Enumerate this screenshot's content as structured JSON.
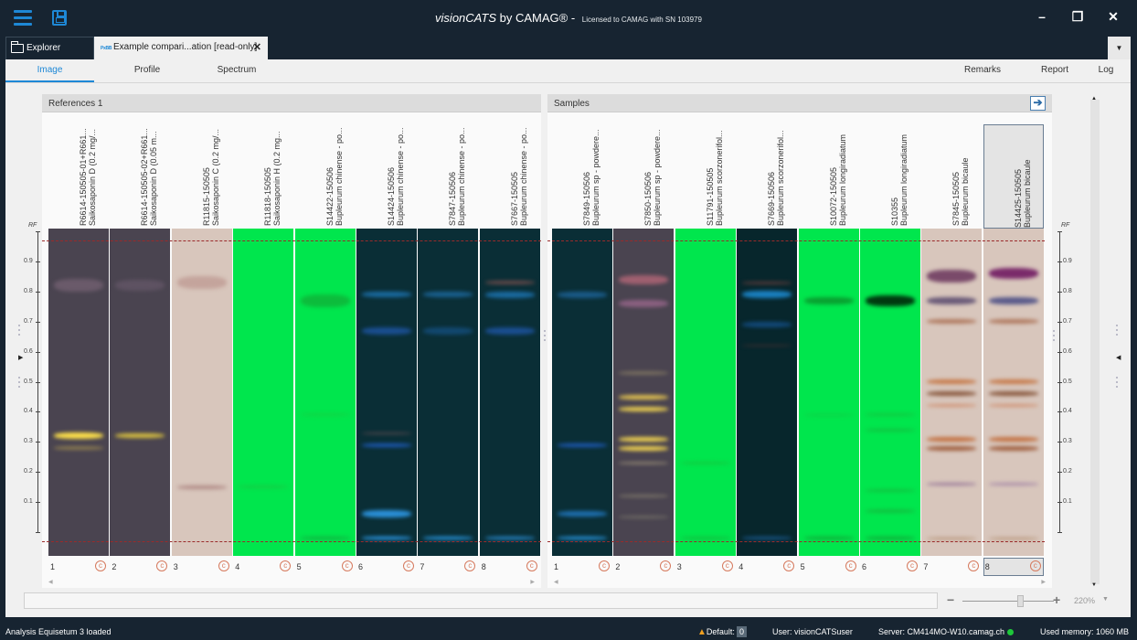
{
  "titlebar": {
    "app_name_italic": "visionCATS",
    "app_name_rest": " by CAMAG®",
    "separator": " - ",
    "license": "Licensed to CAMAG with SN 103979",
    "minimize": "–",
    "restore": "❐",
    "close": "✕"
  },
  "tabs": {
    "explorer": "Explorer",
    "doc_icon_text": "PxBB",
    "document": "Example compari...ation [read-only]",
    "close": "✕",
    "dropdown": "▼"
  },
  "subtabs": {
    "left": [
      {
        "label": "Image",
        "active": true
      },
      {
        "label": "Profile",
        "active": false
      },
      {
        "label": "Spectrum",
        "active": false
      }
    ],
    "right": [
      {
        "label": "Remarks"
      },
      {
        "label": "Report"
      },
      {
        "label": "Log"
      }
    ]
  },
  "references_panel": {
    "title": "References 1",
    "lanes": [
      {
        "num": "1",
        "line1": "R6614-150505-01+R661...",
        "line2": "Saikosaponin D (0.2 mg/...",
        "bg": "#4a4450",
        "bands": [
          {
            "rf": 0.35,
            "color": "#ffe14a",
            "h": 7
          },
          {
            "rf": 0.31,
            "color": "#8a7a50",
            "h": 4
          },
          {
            "rf": 0.85,
            "color": "#6a5a6a",
            "h": 14
          }
        ]
      },
      {
        "num": "2",
        "line1": "R6614-150505-02+R661...",
        "line2": "Saikosaponin D (0.05 m...",
        "bg": "#4a4450",
        "bands": [
          {
            "rf": 0.35,
            "color": "#d8c040",
            "h": 5
          },
          {
            "rf": 0.85,
            "color": "#5e5262",
            "h": 12
          }
        ]
      },
      {
        "num": "3",
        "line1": "R11815-150505",
        "line2": "Saikosaponin C (0.2 mg/...",
        "bg": "#d8c6bc",
        "bands": [
          {
            "rf": 0.18,
            "color": "#b08a86",
            "h": 4
          },
          {
            "rf": 0.86,
            "color": "#c4a49c",
            "h": 14
          }
        ]
      },
      {
        "num": "4",
        "line1": "R11818-150505",
        "line2": "Saikosaponin H (0.2 mg...",
        "bg": "#00e64d",
        "bands": [
          {
            "rf": 0.18,
            "color": "#14cc44",
            "h": 3
          }
        ]
      },
      {
        "num": "5",
        "line1": "S14422-150506",
        "line2": "Bupleurum chinense - po...",
        "bg": "#00e64d",
        "bands": [
          {
            "rf": 0.8,
            "color": "#0cbc3c",
            "h": 14
          },
          {
            "rf": 0.42,
            "color": "#10d444",
            "h": 3
          },
          {
            "rf": 0.01,
            "color": "#10b040",
            "h": 3
          }
        ]
      },
      {
        "num": "6",
        "line1": "S14424-150506",
        "line2": "Bupleurum chinense - po...",
        "bg": "#0a2e36",
        "bands": [
          {
            "rf": 0.82,
            "color": "#1a6aa0",
            "h": 6
          },
          {
            "rf": 0.7,
            "color": "#1a4e90",
            "h": 8
          },
          {
            "rf": 0.32,
            "color": "#1e5ab8",
            "h": 4
          },
          {
            "rf": 0.36,
            "color": "#5a4a50",
            "h": 2
          },
          {
            "rf": 0.09,
            "color": "#2a90d8",
            "h": 8
          },
          {
            "rf": 0.01,
            "color": "#30a8ff",
            "h": 3
          }
        ]
      },
      {
        "num": "7",
        "line1": "S7847-150506",
        "line2": "Bupleurum chinense - po...",
        "bg": "#0a2e36",
        "bands": [
          {
            "rf": 0.82,
            "color": "#1a6090",
            "h": 6
          },
          {
            "rf": 0.7,
            "color": "#124870",
            "h": 8
          },
          {
            "rf": 0.01,
            "color": "#2aa0f0",
            "h": 3
          }
        ]
      },
      {
        "num": "8",
        "line1": "S7667-150505",
        "line2": "Bupleurum chinense - po...",
        "bg": "#0a2e36",
        "bands": [
          {
            "rf": 0.86,
            "color": "#6a4a4a",
            "h": 4
          },
          {
            "rf": 0.82,
            "color": "#1a6aa0",
            "h": 7
          },
          {
            "rf": 0.7,
            "color": "#1a4e90",
            "h": 8
          },
          {
            "rf": 0.01,
            "color": "#2a90d8",
            "h": 3
          }
        ]
      }
    ]
  },
  "samples_panel": {
    "title": "Samples",
    "go_button": "➔",
    "lanes": [
      {
        "num": "1",
        "line1": "S7849-150506",
        "line2": "Bupleurum sp - powdere...",
        "bg": "#0a2e36",
        "bands": [
          {
            "rf": 0.82,
            "color": "#1a5a88",
            "h": 7
          },
          {
            "rf": 0.32,
            "color": "#1e5ab8",
            "h": 4
          },
          {
            "rf": 0.09,
            "color": "#1e70b0",
            "h": 6
          },
          {
            "rf": 0.01,
            "color": "#2aa0f0",
            "h": 3
          }
        ]
      },
      {
        "num": "2",
        "line1": "S7850-150506",
        "line2": "Bupleurum sp - powdere...",
        "bg": "#4a4450",
        "bands": [
          {
            "rf": 0.87,
            "color": "#a06070",
            "h": 10
          },
          {
            "rf": 0.79,
            "color": "#8a6080",
            "h": 8
          },
          {
            "rf": 0.56,
            "color": "#7a7060",
            "h": 4
          },
          {
            "rf": 0.48,
            "color": "#e0c050",
            "h": 5
          },
          {
            "rf": 0.44,
            "color": "#e8cc50",
            "h": 5
          },
          {
            "rf": 0.34,
            "color": "#f0d250",
            "h": 5
          },
          {
            "rf": 0.31,
            "color": "#f0d250",
            "h": 5
          },
          {
            "rf": 0.26,
            "color": "#8a8070",
            "h": 3
          },
          {
            "rf": 0.15,
            "color": "#7a7468",
            "h": 3
          },
          {
            "rf": 0.08,
            "color": "#6e6a64",
            "h": 3
          }
        ]
      },
      {
        "num": "3",
        "line1": "S11791-150505",
        "line2": "Bupleurum scorzonerifol...",
        "bg": "#00e64d",
        "bands": [
          {
            "rf": 0.26,
            "color": "#10cc40",
            "h": 3
          },
          {
            "rf": 0.01,
            "color": "#10c040",
            "h": 3
          }
        ]
      },
      {
        "num": "4",
        "line1": "S7669-150506",
        "line2": "Bupleurum scorzonerifol...",
        "bg": "#07262c",
        "bands": [
          {
            "rf": 0.86,
            "color": "#5a3a3a",
            "h": 3
          },
          {
            "rf": 0.82,
            "color": "#1a80c0",
            "h": 8
          },
          {
            "rf": 0.72,
            "color": "#124878",
            "h": 6
          },
          {
            "rf": 0.65,
            "color": "#3a2e30",
            "h": 2
          },
          {
            "rf": 0.01,
            "color": "#1a5a90",
            "h": 3
          }
        ]
      },
      {
        "num": "5",
        "line1": "S10072-150505",
        "line2": "Bupleurum longiradiatum",
        "bg": "#00e64d",
        "bands": [
          {
            "rf": 0.8,
            "color": "#08a030",
            "h": 8
          },
          {
            "rf": 0.42,
            "color": "#10cc44",
            "h": 2
          },
          {
            "rf": 0.01,
            "color": "#10a838",
            "h": 3
          }
        ]
      },
      {
        "num": "6",
        "line1": "S10355",
        "line2": "Bupleurum longiradiatum",
        "bg": "#00e64d",
        "bands": [
          {
            "rf": 0.8,
            "color": "#003a10",
            "h": 12
          },
          {
            "rf": 0.42,
            "color": "#10c840",
            "h": 3
          },
          {
            "rf": 0.37,
            "color": "#10c040",
            "h": 3
          },
          {
            "rf": 0.17,
            "color": "#10c040",
            "h": 3
          },
          {
            "rf": 0.1,
            "color": "#10c040",
            "h": 4
          },
          {
            "rf": 0.01,
            "color": "#10a838",
            "h": 3
          }
        ]
      },
      {
        "num": "7",
        "line1": "S7845-150505",
        "line2": "Bupleurum bicaule",
        "bg": "#d8c6bc",
        "bands": [
          {
            "rf": 0.88,
            "color": "#7a4a6a",
            "h": 14
          },
          {
            "rf": 0.8,
            "color": "#6a5a78",
            "h": 8
          },
          {
            "rf": 0.73,
            "color": "#b07a60",
            "h": 5
          },
          {
            "rf": 0.53,
            "color": "#c67a4a",
            "h": 5
          },
          {
            "rf": 0.49,
            "color": "#8a5a40",
            "h": 5
          },
          {
            "rf": 0.45,
            "color": "#d09070",
            "h": 3
          },
          {
            "rf": 0.34,
            "color": "#c27040",
            "h": 5
          },
          {
            "rf": 0.31,
            "color": "#a06040",
            "h": 5
          },
          {
            "rf": 0.19,
            "color": "#9a7a9a",
            "h": 3
          },
          {
            "rf": 0.01,
            "color": "#b08a6a",
            "h": 2
          }
        ]
      },
      {
        "num": "8",
        "line1": "S14425-150505",
        "line2": "Bupleurum bicaule",
        "bg": "#d8c6bc",
        "selected": true,
        "bands": [
          {
            "rf": 0.89,
            "color": "#7a2a6a",
            "h": 12
          },
          {
            "rf": 0.8,
            "color": "#5a5a8a",
            "h": 8
          },
          {
            "rf": 0.73,
            "color": "#b07a60",
            "h": 5
          },
          {
            "rf": 0.53,
            "color": "#c67a4a",
            "h": 5
          },
          {
            "rf": 0.49,
            "color": "#8a5a40",
            "h": 5
          },
          {
            "rf": 0.45,
            "color": "#d09070",
            "h": 3
          },
          {
            "rf": 0.34,
            "color": "#c27040",
            "h": 5
          },
          {
            "rf": 0.31,
            "color": "#a06040",
            "h": 5
          },
          {
            "rf": 0.19,
            "color": "#a88aa8",
            "h": 3
          },
          {
            "rf": 0.01,
            "color": "#b08a6a",
            "h": 2
          }
        ]
      }
    ]
  },
  "rf_axis": {
    "title": "RF",
    "ticks": [
      "0.9",
      "0.8",
      "0.7",
      "0.6",
      "0.5",
      "0.4",
      "0.3",
      "0.2",
      "0.1"
    ]
  },
  "zoom": {
    "minus": "−",
    "plus": "+",
    "value": "220%",
    "dropdown": "▼"
  },
  "status": {
    "message": "Analysis Equisetum 3 loaded",
    "default_label": "Default:",
    "default_count": "0",
    "user": "User: visionCATSuser",
    "server": "Server: CM414MO-W10.camag.ch",
    "memory": "Used memory: 1060 MB"
  },
  "colors": {
    "accent": "#1e88d6",
    "titlebar_bg": "#172431",
    "front_line": "#9a2a2a",
    "server_ok": "#1ec73a"
  }
}
